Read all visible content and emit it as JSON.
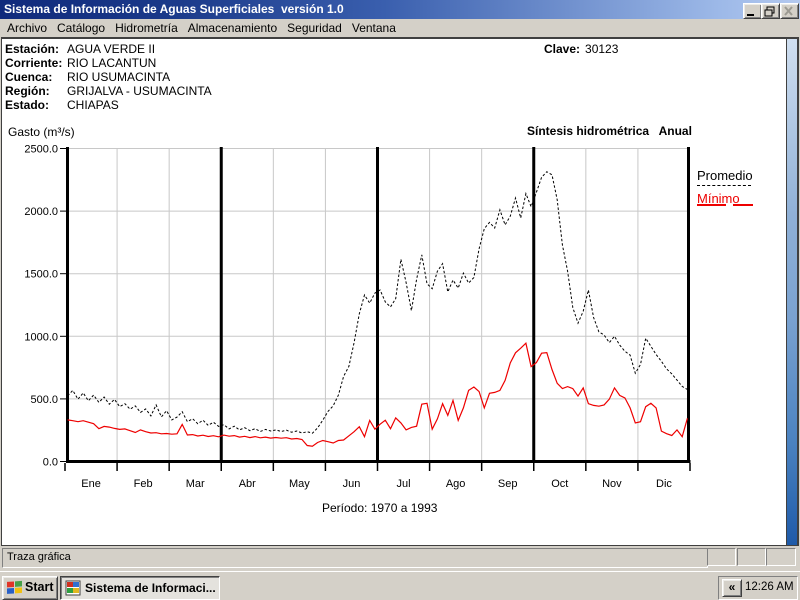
{
  "titlebar": {
    "title": "Sistema de Información de Aguas Superficiales  versión 1.0"
  },
  "menubar": {
    "items": [
      "Archivo",
      "Catálogo",
      "Hidrometría",
      "Almacenamiento",
      "Seguridad",
      "Ventana"
    ]
  },
  "info": {
    "rows": [
      {
        "label": "Estación:",
        "value": "AGUA VERDE II"
      },
      {
        "label": "Corriente:",
        "value": "RIO LACANTUN"
      },
      {
        "label": "Cuenca:",
        "value": "RIO USUMACINTA"
      },
      {
        "label": "Región:",
        "value": "GRIJALVA - USUMACINTA"
      },
      {
        "label": "Estado:",
        "value": "CHIAPAS"
      }
    ],
    "clave_label": "Clave:",
    "clave_value": "30123"
  },
  "chart_data": {
    "type": "line",
    "ylabel": "Gasto (m³/s)",
    "title_right": "Síntesis hidrométrica   Anual",
    "period": "Período:  1970 a 1993",
    "categories": [
      "Ene",
      "Feb",
      "Mar",
      "Abr",
      "May",
      "Jun",
      "Jul",
      "Ago",
      "Sep",
      "Oct",
      "Nov",
      "Dic"
    ],
    "ylim": [
      0,
      2500
    ],
    "ytick_labels": [
      "0.0",
      "500.0",
      "1000.0",
      "1500.0",
      "2000.0",
      "2500.0"
    ],
    "quarter_separators_after": [
      3,
      6,
      9
    ],
    "points_per_month": 10,
    "series": [
      {
        "name": "Promedio",
        "color": "#000000",
        "dash": "2.5,2",
        "values": [
          525,
          568,
          498,
          548,
          485,
          530,
          472,
          515,
          458,
          496,
          438,
          462,
          418,
          444,
          392,
          420,
          364,
          452,
          356,
          406,
          332,
          355,
          398,
          318,
          342,
          302,
          330,
          288,
          314,
          280,
          294,
          260,
          282,
          252,
          270,
          246,
          262,
          240,
          256,
          244,
          252,
          240,
          250,
          234,
          244,
          228,
          238,
          226,
          268,
          330,
          400,
          445,
          530,
          680,
          760,
          950,
          1180,
          1330,
          1265,
          1345,
          1370,
          1275,
          1235,
          1300,
          1615,
          1430,
          1205,
          1455,
          1650,
          1420,
          1380,
          1520,
          1580,
          1355,
          1450,
          1385,
          1505,
          1425,
          1470,
          1700,
          1860,
          1910,
          1865,
          2010,
          1890,
          1960,
          2105,
          1945,
          2140,
          2035,
          2150,
          2270,
          2315,
          2290,
          2090,
          1730,
          1520,
          1230,
          1105,
          1200,
          1370,
          1150,
          1035,
          1010,
          950,
          1000,
          930,
          880,
          850,
          705,
          775,
          985,
          920,
          855,
          800,
          740,
          700,
          650,
          600,
          575
        ]
      },
      {
        "name": "Mínimo",
        "color": "#ee0000",
        "dash": "",
        "values": [
          332,
          326,
          318,
          326,
          314,
          302,
          262,
          280,
          275,
          264,
          256,
          260,
          246,
          232,
          252,
          238,
          228,
          230,
          221,
          224,
          218,
          221,
          296,
          212,
          215,
          204,
          210,
          200,
          206,
          197,
          211,
          202,
          207,
          195,
          201,
          191,
          199,
          189,
          195,
          187,
          192,
          186,
          190,
          180,
          184,
          176,
          128,
          122,
          152,
          168,
          158,
          148,
          168,
          172,
          205,
          238,
          278,
          198,
          328,
          258,
          298,
          330,
          262,
          348,
          308,
          252,
          272,
          282,
          458,
          465,
          258,
          340,
          462,
          368,
          488,
          328,
          428,
          568,
          595,
          558,
          428,
          545,
          552,
          568,
          648,
          788,
          868,
          905,
          945,
          758,
          790,
          865,
          870,
          735,
          625,
          582,
          598,
          582,
          522,
          588,
          462,
          448,
          442,
          452,
          498,
          588,
          528,
          508,
          428,
          308,
          318,
          438,
          465,
          428,
          243,
          222,
          208,
          252,
          198,
          345
        ]
      }
    ]
  },
  "statusbar": {
    "text": "Traza gráfica"
  },
  "taskbar": {
    "start_label": "Start",
    "task_label": "Sistema de Informaci...",
    "tray_chevron": "«",
    "clock": "12:26 AM"
  }
}
